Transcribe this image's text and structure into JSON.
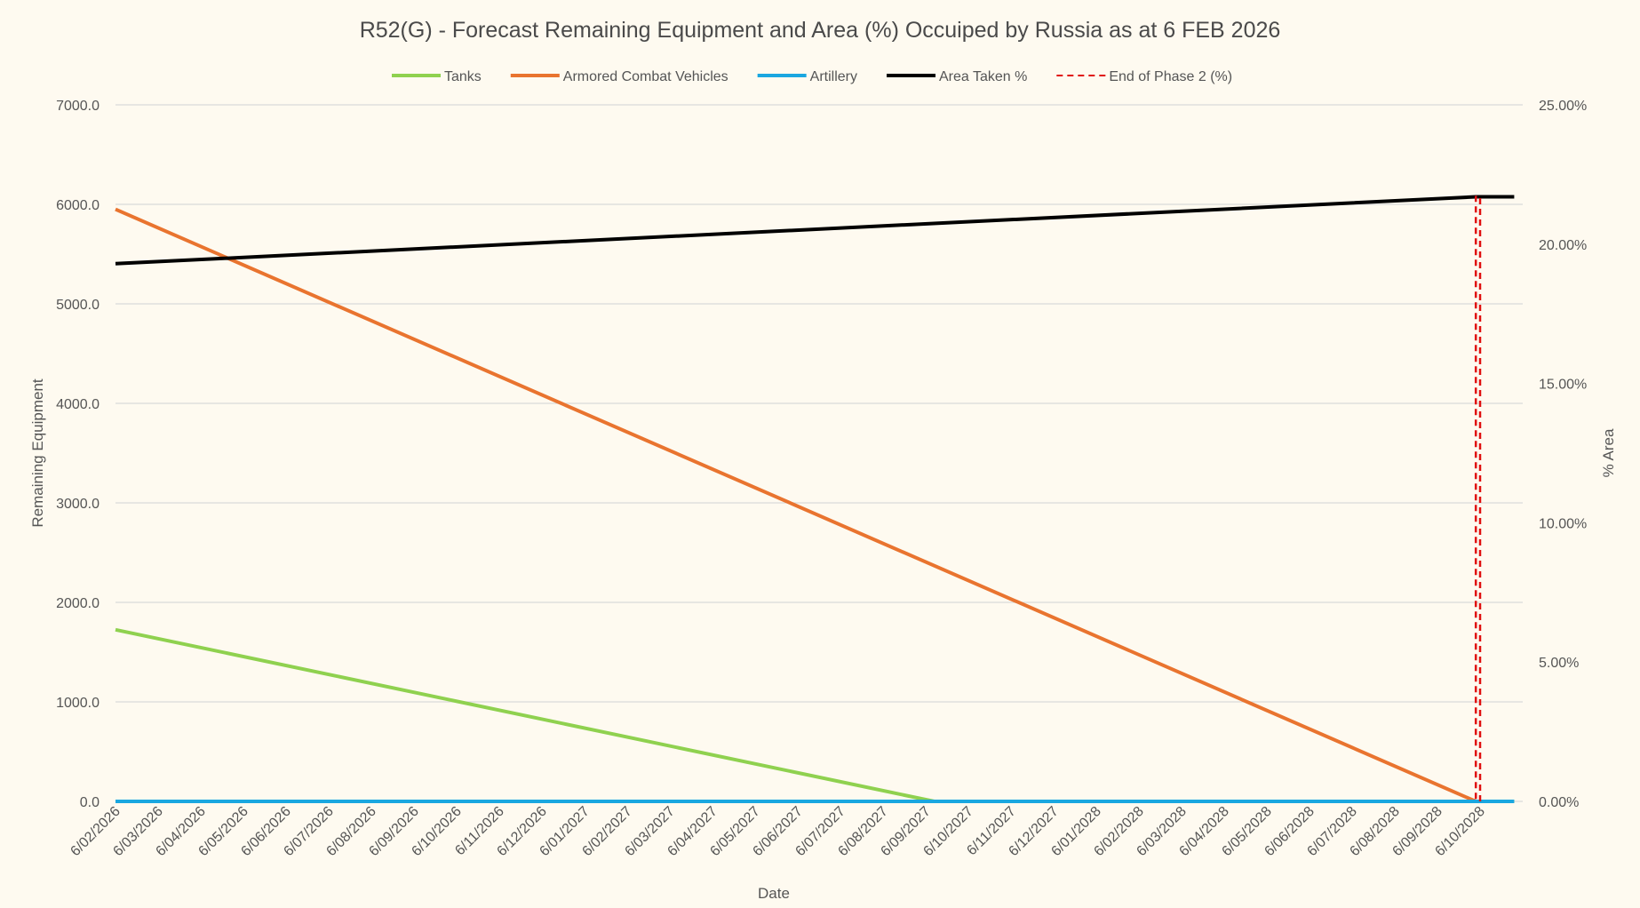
{
  "chart_data": {
    "type": "line",
    "title": "R52(G) - Forecast Remaining Equipment and Area (%) Occuiped by Russia as at 6 FEB 2026",
    "xlabel": "Date",
    "ylabel": "Remaining Equipment",
    "y2label": "% Area",
    "categories": [
      "6/02/2026",
      "6/03/2026",
      "6/04/2026",
      "6/05/2026",
      "6/06/2026",
      "6/07/2026",
      "6/08/2026",
      "6/09/2026",
      "6/10/2026",
      "6/11/2026",
      "6/12/2026",
      "6/01/2027",
      "6/02/2027",
      "6/03/2027",
      "6/04/2027",
      "6/05/2027",
      "6/06/2027",
      "6/07/2027",
      "6/08/2027",
      "6/09/2027",
      "6/10/2027",
      "6/11/2027",
      "6/12/2027",
      "6/01/2028",
      "6/02/2028",
      "6/03/2028",
      "6/04/2028",
      "6/05/2028",
      "6/06/2028",
      "6/07/2028",
      "6/08/2028",
      "6/09/2028",
      "6/10/2028"
    ],
    "ylim": [
      0,
      7000
    ],
    "y_ticks": [
      "0.0",
      "1000.0",
      "2000.0",
      "3000.0",
      "4000.0",
      "5000.0",
      "6000.0",
      "7000.0"
    ],
    "y2lim": [
      0,
      25
    ],
    "y2_ticks": [
      "0.00%",
      "5.00%",
      "10.00%",
      "15.00%",
      "20.00%",
      "25.00%"
    ],
    "grid": true,
    "legend_position": "top",
    "series": [
      {
        "name": "Tanks",
        "axis": "left",
        "color": "#8fd14f",
        "style": "solid",
        "points": [
          [
            0,
            1725
          ],
          [
            19.2,
            0
          ],
          [
            32.8,
            0
          ]
        ]
      },
      {
        "name": "Armored Combat Vehicles",
        "axis": "left",
        "color": "#e9742f",
        "style": "solid",
        "points": [
          [
            0,
            5950
          ],
          [
            31.9,
            0
          ]
        ]
      },
      {
        "name": "Artillery",
        "axis": "left",
        "color": "#1aa7e0",
        "style": "solid",
        "points": [
          [
            0,
            0
          ],
          [
            32.8,
            0
          ]
        ]
      },
      {
        "name": "Area Taken %",
        "axis": "right",
        "color": "#000000",
        "style": "solid",
        "points": [
          [
            0,
            19.3
          ],
          [
            31.9,
            21.7
          ],
          [
            32.8,
            21.7
          ]
        ]
      },
      {
        "name": "End of Phase 2 (%)",
        "axis": "right",
        "color": "#e01010",
        "style": "dashed",
        "points": [
          [
            32.0,
            0
          ],
          [
            32.0,
            21.7
          ],
          [
            31.9,
            21.7
          ],
          [
            31.9,
            0
          ]
        ]
      }
    ]
  }
}
